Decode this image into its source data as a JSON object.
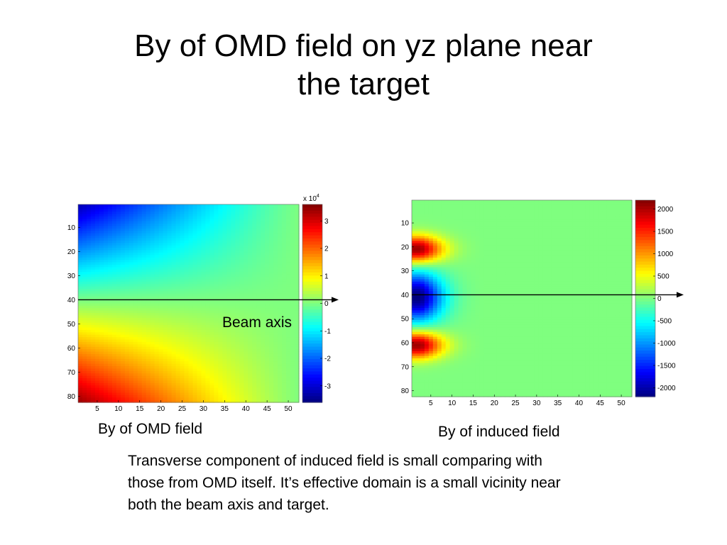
{
  "slide": {
    "title_lines": [
      "By of OMD field on yz plane near",
      "the target"
    ],
    "beam_axis_label": "Beam axis",
    "caption_left": "By of OMD field",
    "caption_right": "By of induced field",
    "body_lines": [
      "Transverse component of induced field is small comparing with",
      "those from OMD itself.  It’s effective domain is a small vicinity near",
      "both the beam axis and target."
    ]
  },
  "colors": {
    "colormap": [
      "#00007f",
      "#0000ff",
      "#007fff",
      "#00ffff",
      "#7fff7f",
      "#ffff00",
      "#ff7f00",
      "#ff0000",
      "#7f0000"
    ],
    "axis_line": "#000000"
  },
  "chart_data": [
    {
      "type": "heatmap",
      "title": "",
      "xlabel": "",
      "ylabel": "",
      "x_ticks": [
        5,
        10,
        15,
        20,
        25,
        30,
        35,
        40,
        45,
        50
      ],
      "y_ticks": [
        10,
        20,
        30,
        40,
        50,
        60,
        70,
        80
      ],
      "xlim": [
        1,
        52
      ],
      "ylim": [
        1,
        82
      ],
      "colorbar": {
        "ticks": [
          3,
          2,
          1,
          0,
          -1,
          -2,
          -3
        ],
        "range": [
          -3.6,
          3.6
        ],
        "multiplier_label": "x 10",
        "multiplier_exponent": "4"
      },
      "annotations": [
        "Beam axis"
      ],
      "value_model": "linear gradient: ~-3.2e4 at top-left corner, ~0 along beam axis and right edge, ~+3.2e4 at bottom-left corner",
      "beam_axis_row": 40
    },
    {
      "type": "heatmap",
      "title": "",
      "xlabel": "",
      "ylabel": "",
      "x_ticks": [
        5,
        10,
        15,
        20,
        25,
        30,
        35,
        40,
        45,
        50
      ],
      "y_ticks": [
        10,
        20,
        30,
        40,
        50,
        60,
        70,
        80
      ],
      "xlim": [
        1,
        52
      ],
      "ylim": [
        1,
        82
      ],
      "colorbar": {
        "ticks": [
          2000,
          1500,
          1000,
          500,
          0,
          -500,
          -1000,
          -1500,
          -2000
        ],
        "range": [
          -2200,
          2200
        ]
      },
      "value_model": "near zero everywhere except x < 17: positive lobes (~+2000) centred at y=21 and y=61, negative band (~-2000) centred at y=41",
      "beam_axis_row": 40
    }
  ]
}
